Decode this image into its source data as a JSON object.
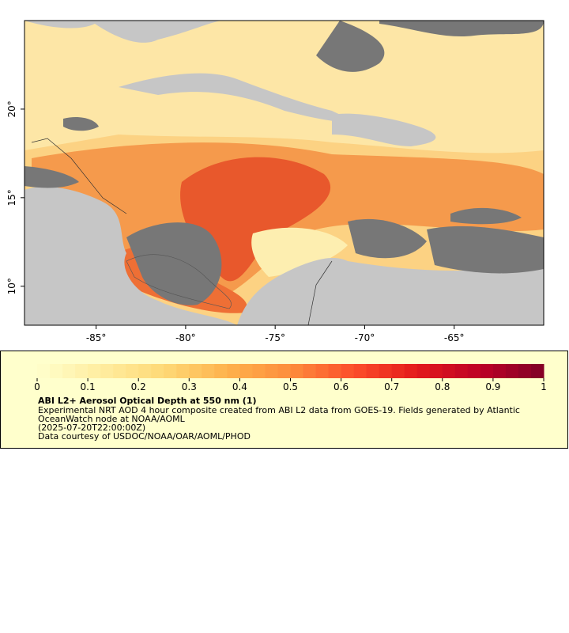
{
  "map": {
    "xlim": [
      -89,
      -60
    ],
    "ylim": [
      7.8,
      25
    ],
    "xticks": [
      {
        "value": -85,
        "label": "-85°"
      },
      {
        "value": -80,
        "label": "-80°"
      },
      {
        "value": -75,
        "label": "-75°"
      },
      {
        "value": -70,
        "label": "-70°"
      },
      {
        "value": -65,
        "label": "-65°"
      }
    ],
    "yticks": [
      {
        "value": 10,
        "label": "10°"
      },
      {
        "value": 15,
        "label": "15°"
      },
      {
        "value": 20,
        "label": "20°"
      }
    ]
  },
  "colorbar": {
    "range": [
      0,
      1
    ],
    "ticks": [
      0,
      0.1,
      0.2,
      0.3,
      0.4,
      0.5,
      0.6,
      0.7,
      0.8,
      0.9,
      1
    ],
    "colors": [
      "#ffffcc",
      "#ffeda0",
      "#fed976",
      "#feb24c",
      "#fd8d3c",
      "#fc4e2a",
      "#e31a1c",
      "#bd0026",
      "#800026"
    ]
  },
  "legend": {
    "title": "ABI L2+ Aerosol Optical Depth at 550 nm (1)",
    "lines": [
      "Experimental NRT AOD 4 hour composite created from ABI L2 data from GOES-19. Fields generated by Atlantic",
      "OceanWatch node at NOAA/AOML",
      "(2025-07-20T22:00:00Z)",
      "Data courtesy of USDOC/NOAA/OAR/AOML/PHOD"
    ]
  }
}
